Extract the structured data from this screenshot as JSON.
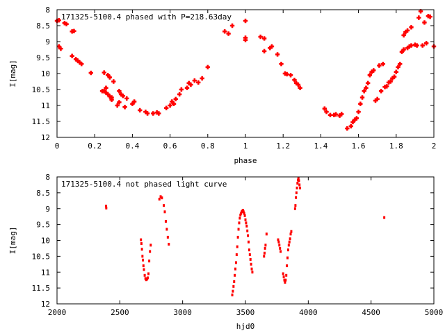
{
  "colors": {
    "point": "#ff0000",
    "axis": "#000000",
    "background": "#ffffff"
  },
  "chart_data": [
    {
      "type": "scatter",
      "title": "171325-5100.4 phased with P=218.63day",
      "xlabel": "phase",
      "ylabel": "I[mag]",
      "xlim": [
        0,
        2
      ],
      "ylim": [
        8,
        12
      ],
      "y_inverted": true,
      "grid": false,
      "x_ticks": [
        "0",
        "0.2",
        "0.4",
        "0.6",
        "0.8",
        "1",
        "1.2",
        "1.4",
        "1.6",
        "1.8",
        "2"
      ],
      "y_ticks": [
        "8",
        "8.5",
        "9",
        "9.5",
        "10",
        "10.5",
        "11",
        "11.5",
        "12"
      ],
      "series": [
        {
          "points": [
            [
              0.0,
              8.35
            ],
            [
              0.01,
              8.33
            ],
            [
              0.01,
              9.15
            ],
            [
              0.02,
              9.22
            ],
            [
              0.04,
              8.42
            ],
            [
              0.05,
              8.45
            ],
            [
              0.08,
              9.45
            ],
            [
              0.08,
              8.68
            ],
            [
              0.09,
              8.67
            ],
            [
              0.1,
              9.55
            ],
            [
              0.11,
              9.6
            ],
            [
              0.12,
              9.65
            ],
            [
              0.13,
              9.7
            ],
            [
              0.18,
              9.98
            ],
            [
              0.24,
              10.55
            ],
            [
              0.25,
              10.55
            ],
            [
              0.25,
              9.97
            ],
            [
              0.26,
              10.45
            ],
            [
              0.26,
              10.6
            ],
            [
              0.27,
              10.05
            ],
            [
              0.27,
              10.65
            ],
            [
              0.28,
              10.72
            ],
            [
              0.28,
              10.12
            ],
            [
              0.29,
              10.82
            ],
            [
              0.29,
              10.75
            ],
            [
              0.3,
              10.25
            ],
            [
              0.32,
              11.0
            ],
            [
              0.33,
              10.9
            ],
            [
              0.33,
              10.55
            ],
            [
              0.34,
              10.65
            ],
            [
              0.35,
              10.7
            ],
            [
              0.36,
              11.05
            ],
            [
              0.37,
              10.78
            ],
            [
              0.4,
              10.95
            ],
            [
              0.41,
              10.88
            ],
            [
              0.44,
              11.15
            ],
            [
              0.47,
              11.2
            ],
            [
              0.48,
              11.25
            ],
            [
              0.51,
              11.25
            ],
            [
              0.53,
              11.22
            ],
            [
              0.54,
              11.25
            ],
            [
              0.58,
              11.08
            ],
            [
              0.6,
              11.0
            ],
            [
              0.61,
              10.88
            ],
            [
              0.62,
              10.95
            ],
            [
              0.63,
              10.8
            ],
            [
              0.65,
              10.65
            ],
            [
              0.66,
              10.5
            ],
            [
              0.69,
              10.45
            ],
            [
              0.7,
              10.3
            ],
            [
              0.71,
              10.35
            ],
            [
              0.73,
              10.22
            ],
            [
              0.75,
              10.28
            ],
            [
              0.77,
              10.15
            ],
            [
              0.8,
              9.8
            ],
            [
              0.89,
              8.68
            ],
            [
              0.91,
              8.75
            ],
            [
              0.93,
              8.5
            ],
            [
              1.0,
              8.35
            ],
            [
              1.0,
              8.88
            ],
            [
              1.0,
              8.95
            ],
            [
              1.08,
              8.85
            ],
            [
              1.1,
              8.9
            ],
            [
              1.1,
              9.3
            ],
            [
              1.13,
              9.2
            ],
            [
              1.14,
              9.15
            ],
            [
              1.17,
              9.4
            ],
            [
              1.19,
              9.7
            ],
            [
              1.21,
              10.0
            ],
            [
              1.22,
              10.02
            ],
            [
              1.24,
              10.05
            ],
            [
              1.26,
              10.2
            ],
            [
              1.27,
              10.3
            ],
            [
              1.28,
              10.35
            ],
            [
              1.29,
              10.45
            ],
            [
              1.42,
              11.1
            ],
            [
              1.43,
              11.2
            ],
            [
              1.45,
              11.3
            ],
            [
              1.47,
              11.3
            ],
            [
              1.48,
              11.28
            ],
            [
              1.5,
              11.32
            ],
            [
              1.51,
              11.27
            ],
            [
              1.54,
              11.72
            ],
            [
              1.56,
              11.65
            ],
            [
              1.57,
              11.52
            ],
            [
              1.58,
              11.45
            ],
            [
              1.59,
              11.4
            ],
            [
              1.6,
              11.2
            ],
            [
              1.61,
              10.95
            ],
            [
              1.62,
              10.75
            ],
            [
              1.63,
              10.55
            ],
            [
              1.64,
              10.45
            ],
            [
              1.65,
              10.3
            ],
            [
              1.66,
              10.05
            ],
            [
              1.67,
              9.95
            ],
            [
              1.68,
              9.9
            ],
            [
              1.69,
              10.85
            ],
            [
              1.7,
              10.8
            ],
            [
              1.71,
              9.75
            ],
            [
              1.72,
              10.55
            ],
            [
              1.73,
              9.7
            ],
            [
              1.74,
              10.42
            ],
            [
              1.75,
              10.4
            ],
            [
              1.76,
              10.28
            ],
            [
              1.77,
              10.25
            ],
            [
              1.78,
              10.15
            ],
            [
              1.79,
              10.1
            ],
            [
              1.8,
              9.95
            ],
            [
              1.81,
              9.8
            ],
            [
              1.82,
              9.7
            ],
            [
              1.83,
              9.32
            ],
            [
              1.84,
              9.25
            ],
            [
              1.84,
              8.8
            ],
            [
              1.85,
              8.7
            ],
            [
              1.86,
              8.65
            ],
            [
              1.86,
              9.2
            ],
            [
              1.87,
              9.15
            ],
            [
              1.88,
              8.55
            ],
            [
              1.88,
              9.12
            ],
            [
              1.9,
              9.1
            ],
            [
              1.91,
              9.12
            ],
            [
              1.92,
              8.25
            ],
            [
              1.93,
              8.05
            ],
            [
              1.94,
              9.12
            ],
            [
              1.95,
              8.4
            ],
            [
              1.96,
              9.05
            ],
            [
              1.97,
              8.2
            ],
            [
              1.98,
              8.22
            ],
            [
              2.0,
              9.15
            ]
          ]
        }
      ]
    },
    {
      "type": "scatter",
      "title": "171325-5100.4 not phased light curve",
      "xlabel": "hjd0",
      "ylabel": "I[mag]",
      "xlim": [
        2000,
        5000
      ],
      "ylim": [
        8,
        12
      ],
      "y_inverted": true,
      "grid": false,
      "x_ticks": [
        "2000",
        "2500",
        "3000",
        "3500",
        "4000",
        "4500",
        "5000"
      ],
      "y_ticks": [
        "8",
        "8.5",
        "9",
        "9.5",
        "10",
        "10.5",
        "11",
        "11.5",
        "12"
      ],
      "series": [
        {
          "points": [
            [
              2390,
              8.92
            ],
            [
              2392,
              8.98
            ],
            [
              2668,
              9.98
            ],
            [
              2672,
              10.1
            ],
            [
              2676,
              10.28
            ],
            [
              2680,
              10.5
            ],
            [
              2684,
              10.62
            ],
            [
              2688,
              10.8
            ],
            [
              2692,
              10.92
            ],
            [
              2698,
              11.1
            ],
            [
              2704,
              11.2
            ],
            [
              2710,
              11.24
            ],
            [
              2716,
              11.22
            ],
            [
              2722,
              11.18
            ],
            [
              2728,
              11.05
            ],
            [
              2734,
              10.65
            ],
            [
              2740,
              10.35
            ],
            [
              2746,
              10.15
            ],
            [
              2815,
              8.7
            ],
            [
              2825,
              8.62
            ],
            [
              2835,
              8.66
            ],
            [
              2850,
              8.9
            ],
            [
              2858,
              9.1
            ],
            [
              2866,
              9.4
            ],
            [
              2874,
              9.65
            ],
            [
              2882,
              9.9
            ],
            [
              2890,
              10.12
            ],
            [
              3395,
              11.72
            ],
            [
              3400,
              11.6
            ],
            [
              3405,
              11.45
            ],
            [
              3410,
              11.3
            ],
            [
              3415,
              11.1
            ],
            [
              3420,
              10.9
            ],
            [
              3425,
              10.7
            ],
            [
              3430,
              10.45
            ],
            [
              3435,
              10.2
            ],
            [
              3440,
              9.9
            ],
            [
              3445,
              9.65
            ],
            [
              3450,
              9.45
            ],
            [
              3455,
              9.3
            ],
            [
              3460,
              9.2
            ],
            [
              3465,
              9.15
            ],
            [
              3470,
              9.1
            ],
            [
              3475,
              9.08
            ],
            [
              3480,
              9.05
            ],
            [
              3485,
              9.1
            ],
            [
              3490,
              9.15
            ],
            [
              3495,
              9.22
            ],
            [
              3500,
              9.35
            ],
            [
              3505,
              9.45
            ],
            [
              3510,
              9.55
            ],
            [
              3515,
              9.7
            ],
            [
              3520,
              9.85
            ],
            [
              3525,
              10.05
            ],
            [
              3530,
              10.3
            ],
            [
              3535,
              10.45
            ],
            [
              3540,
              10.6
            ],
            [
              3545,
              10.75
            ],
            [
              3550,
              10.9
            ],
            [
              3555,
              11.0
            ],
            [
              3648,
              10.5
            ],
            [
              3652,
              10.4
            ],
            [
              3656,
              10.25
            ],
            [
              3660,
              10.15
            ],
            [
              3668,
              9.8
            ],
            [
              3760,
              9.98
            ],
            [
              3765,
              10.05
            ],
            [
              3770,
              10.15
            ],
            [
              3775,
              10.25
            ],
            [
              3780,
              10.35
            ],
            [
              3800,
              11.05
            ],
            [
              3805,
              11.15
            ],
            [
              3810,
              11.25
            ],
            [
              3815,
              11.32
            ],
            [
              3820,
              11.25
            ],
            [
              3825,
              11.1
            ],
            [
              3830,
              10.8
            ],
            [
              3835,
              10.55
            ],
            [
              3840,
              10.3
            ],
            [
              3845,
              10.15
            ],
            [
              3850,
              10.05
            ],
            [
              3855,
              9.95
            ],
            [
              3860,
              9.8
            ],
            [
              3865,
              9.72
            ],
            [
              3895,
              9.0
            ],
            [
              3898,
              8.9
            ],
            [
              3902,
              8.65
            ],
            [
              3906,
              8.5
            ],
            [
              3910,
              8.35
            ],
            [
              3914,
              8.2
            ],
            [
              3918,
              8.1
            ],
            [
              3922,
              8.05
            ],
            [
              3926,
              8.12
            ],
            [
              3930,
              8.25
            ],
            [
              3934,
              8.35
            ],
            [
              4605,
              9.28
            ]
          ]
        }
      ]
    }
  ]
}
